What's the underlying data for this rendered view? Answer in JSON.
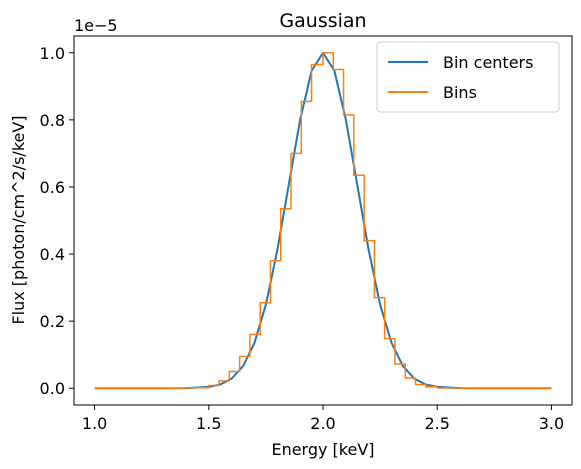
{
  "chart_data": {
    "type": "line",
    "title": "Gaussian",
    "xlabel": "Energy [keV]",
    "ylabel": "Flux [photon/cm^2/s/keV]",
    "y_offset_label": "1e−5",
    "y_scale_factor": 1e-05,
    "xlim": [
      0.91,
      3.09
    ],
    "ylim": [
      -0.05,
      1.05
    ],
    "x_ticks": [
      1.0,
      1.5,
      2.0,
      2.5,
      3.0
    ],
    "x_tick_labels": [
      "1.0",
      "1.5",
      "2.0",
      "2.5",
      "3.0"
    ],
    "y_ticks": [
      0.0,
      0.2,
      0.4,
      0.6,
      0.8,
      1.0
    ],
    "y_tick_labels": [
      "0.0",
      "0.2",
      "0.4",
      "0.6",
      "0.8",
      "1.0"
    ],
    "grid": false,
    "legend_position": "top-right",
    "series": [
      {
        "name": "Bin centers",
        "color": "#1f77b4",
        "style": "line",
        "x": [
          1.0,
          1.1,
          1.2,
          1.3,
          1.4,
          1.5,
          1.55,
          1.6,
          1.65,
          1.7,
          1.75,
          1.8,
          1.85,
          1.9,
          1.95,
          2.0,
          2.05,
          2.1,
          2.15,
          2.2,
          2.25,
          2.3,
          2.35,
          2.4,
          2.45,
          2.5,
          2.6,
          2.7,
          2.8,
          2.9,
          3.0
        ],
        "y": [
          0.0,
          0.0,
          0.0,
          0.0,
          0.0003,
          0.0039,
          0.011,
          0.0286,
          0.0657,
          0.1353,
          0.2494,
          0.4111,
          0.6065,
          0.8007,
          0.946,
          1.0,
          0.946,
          0.8007,
          0.6065,
          0.4111,
          0.2494,
          0.1353,
          0.0657,
          0.0286,
          0.011,
          0.0039,
          0.0003,
          0.0,
          0.0,
          0.0,
          0.0
        ]
      },
      {
        "name": "Bins",
        "color": "#ff7f0e",
        "style": "steps",
        "bin_edges": [
          1.0,
          1.1,
          1.2,
          1.3,
          1.4,
          1.5,
          1.545,
          1.59,
          1.635,
          1.68,
          1.725,
          1.77,
          1.815,
          1.86,
          1.905,
          1.95,
          2.0,
          2.045,
          2.09,
          2.135,
          2.18,
          2.225,
          2.27,
          2.315,
          2.36,
          2.405,
          2.45,
          2.5,
          2.6,
          2.7,
          2.8,
          2.9,
          3.0
        ],
        "values": [
          0.0,
          0.0,
          0.0,
          0.0,
          0.0015,
          0.008,
          0.022,
          0.05,
          0.095,
          0.16,
          0.255,
          0.38,
          0.535,
          0.7,
          0.855,
          0.965,
          1.0,
          0.95,
          0.815,
          0.635,
          0.44,
          0.27,
          0.148,
          0.072,
          0.03,
          0.011,
          0.004,
          0.0005,
          0.0,
          0.0,
          0.0,
          0.0
        ]
      }
    ]
  }
}
